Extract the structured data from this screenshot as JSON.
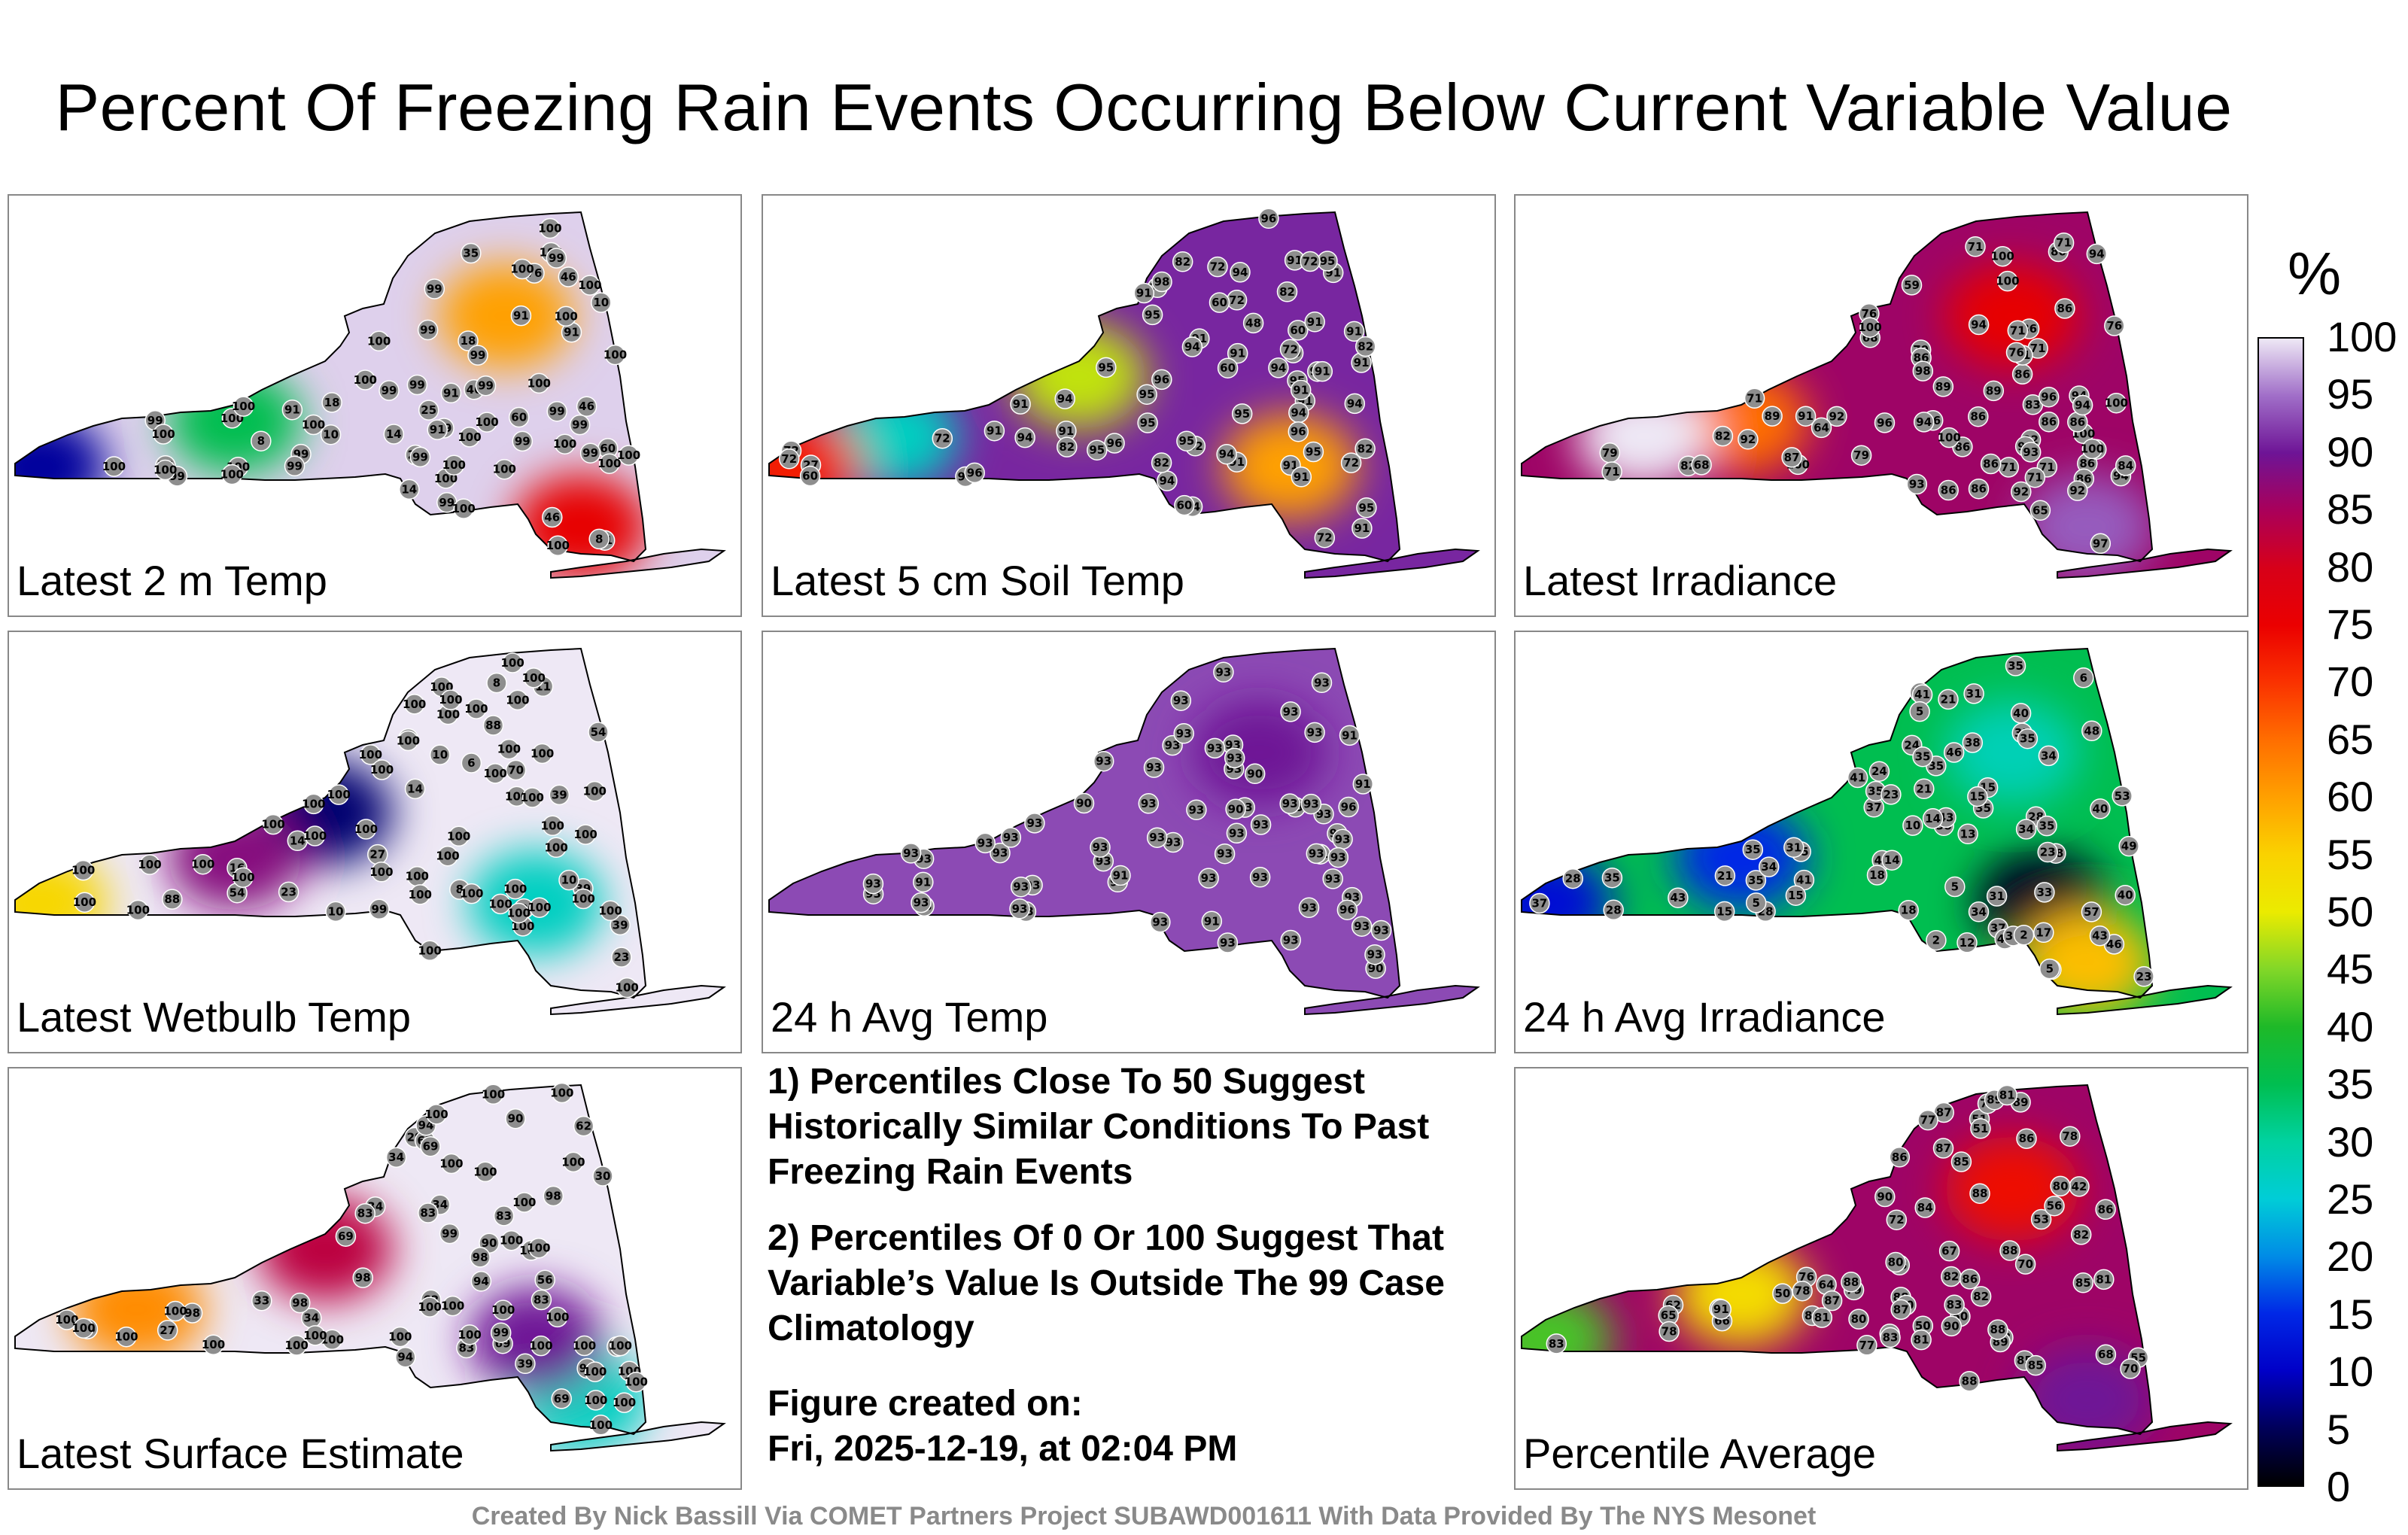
{
  "title": "Percent Of Freezing Rain Events Occurring Below Current Variable Value",
  "colors": {
    "low": "#000000",
    "blue": "#0016e0",
    "cyan": "#00c8d8",
    "green": "#1fb832",
    "yellow": "#f2f000",
    "orange": "#ff7a00",
    "red": "#e80000",
    "purple": "#6a1fa0",
    "lavender": "#e9e1f1"
  },
  "panels": [
    {
      "label": "Latest 2 m Temp",
      "background_pct": 99,
      "hotspots": [
        {
          "pct": 8
        },
        {
          "pct": 35
        },
        {
          "pct": 60
        },
        {
          "pct": 76
        }
      ],
      "stations": [
        "8",
        "18",
        "22",
        "14",
        "35",
        "46",
        "46",
        "46",
        "25",
        "60",
        "60",
        "11",
        "8",
        "18",
        "10",
        "14",
        "91",
        "76",
        "76",
        "46",
        "10",
        "99",
        "99",
        "99",
        "99",
        "100",
        "100",
        "99",
        "91",
        "91",
        "100",
        "91",
        "99",
        "99",
        "99",
        "99",
        "100",
        "99",
        "100",
        "100",
        "100",
        "99",
        "100",
        "100",
        "100",
        "99",
        "100",
        "100",
        "100",
        "100",
        "100",
        "100",
        "100",
        "99",
        "99",
        "99",
        "99",
        "99",
        "91",
        "99",
        "100",
        "100",
        "100",
        "100",
        "100",
        "100",
        "100",
        "100",
        "100",
        "100"
      ]
    },
    {
      "label": "Latest 5 cm Soil Temp",
      "background_pct": 91,
      "hotspots": [
        {
          "pct": 27
        },
        {
          "pct": 48
        },
        {
          "pct": 60
        },
        {
          "pct": 72
        }
      ],
      "stations": [
        "27",
        "95",
        "94",
        "91",
        "91",
        "96",
        "94",
        "91",
        "72",
        "95",
        "95",
        "91",
        "96",
        "94",
        "95",
        "72",
        "91",
        "72",
        "91",
        "91",
        "94",
        "95",
        "91",
        "95",
        "94",
        "91",
        "72",
        "82",
        "91",
        "94",
        "82",
        "91",
        "94",
        "91",
        "48",
        "72",
        "60",
        "95",
        "82",
        "91",
        "60",
        "82",
        "95",
        "82",
        "94",
        "91",
        "96",
        "72",
        "94",
        "72",
        "72",
        "91",
        "60",
        "82",
        "95",
        "96",
        "91",
        "60",
        "95",
        "60",
        "91",
        "95",
        "60",
        "82",
        "72",
        "72",
        "94",
        "98",
        "96",
        "91",
        "94",
        "96"
      ]
    },
    {
      "label": "Latest Irradiance",
      "background_pct": 86,
      "hotspots": [
        {
          "pct": 65
        },
        {
          "pct": 76
        },
        {
          "pct": 94
        },
        {
          "pct": 100
        }
      ],
      "stations": [
        "94",
        "83",
        "89",
        "86",
        "93",
        "86",
        "100",
        "94",
        "86",
        "71",
        "86",
        "91",
        "86",
        "86",
        "76",
        "79",
        "86",
        "89",
        "86",
        "71",
        "71",
        "71",
        "76",
        "86",
        "71",
        "89",
        "79",
        "71",
        "79",
        "71",
        "86",
        "92",
        "82",
        "71",
        "86",
        "68",
        "94",
        "100",
        "96",
        "86",
        "92",
        "86",
        "65",
        "68",
        "86",
        "92",
        "100",
        "98",
        "71",
        "92",
        "94",
        "96",
        "71",
        "82",
        "93",
        "86",
        "64",
        "76",
        "100",
        "96",
        "59",
        "100",
        "92",
        "100",
        "97",
        "94",
        "100",
        "98",
        "84",
        "87",
        "94",
        "100"
      ]
    },
    {
      "label": "Latest Wetbulb Temp",
      "background_pct": 100,
      "hotspots": [
        {
          "pct": 6
        },
        {
          "pct": 27
        },
        {
          "pct": 54
        },
        {
          "pct": 88
        }
      ],
      "stations": [
        "6",
        "14",
        "23",
        "8",
        "39",
        "54",
        "39",
        "39",
        "27",
        "16",
        "54",
        "88",
        "14",
        "11",
        "8",
        "10",
        "10",
        "23",
        "10",
        "70",
        "88",
        "54",
        "100",
        "100",
        "100",
        "100",
        "100",
        "100",
        "100",
        "100",
        "100",
        "100",
        "100",
        "99",
        "100",
        "100",
        "100",
        "100",
        "100",
        "100",
        "100",
        "100",
        "100",
        "100",
        "100",
        "100",
        "100",
        "100",
        "100",
        "100",
        "100",
        "100",
        "100",
        "100",
        "100",
        "100",
        "100",
        "100",
        "100",
        "100",
        "100",
        "100",
        "100",
        "100",
        "100",
        "100",
        "100",
        "100",
        "100",
        "100"
      ]
    },
    {
      "label": "24 h Avg Temp",
      "background_pct": 93,
      "hotspots": [
        {
          "pct": 90
        }
      ],
      "stations": [
        "91",
        "93",
        "91",
        "93",
        "90",
        "91",
        "93",
        "93",
        "93",
        "93",
        "93",
        "90",
        "93",
        "93",
        "90",
        "93",
        "93",
        "93",
        "93",
        "93",
        "93",
        "93",
        "93",
        "93",
        "93",
        "93",
        "93",
        "93",
        "93",
        "93",
        "93",
        "93",
        "93",
        "90",
        "93",
        "93",
        "93",
        "93",
        "91",
        "93",
        "93",
        "91",
        "93",
        "93",
        "93",
        "93",
        "93",
        "93",
        "93",
        "93",
        "90",
        "93",
        "93",
        "91",
        "93",
        "93",
        "93",
        "93",
        "93",
        "93",
        "93",
        "93",
        "96",
        "96",
        "93",
        "93",
        "93",
        "93",
        "93"
      ]
    },
    {
      "label": "24 h Avg Irradiance",
      "background_pct": 35,
      "hotspots": [
        {
          "pct": 2
        },
        {
          "pct": 12
        },
        {
          "pct": 15
        },
        {
          "pct": 28
        },
        {
          "pct": 57
        }
      ],
      "stations": [
        "40",
        "15",
        "35",
        "37",
        "28",
        "37",
        "31",
        "35",
        "31",
        "46",
        "35",
        "40",
        "18",
        "31",
        "38",
        "35",
        "41",
        "28",
        "35",
        "23",
        "35",
        "28",
        "43",
        "43",
        "40",
        "37",
        "48",
        "40",
        "35",
        "38",
        "41",
        "34",
        "33",
        "31",
        "35",
        "21",
        "35",
        "28",
        "24",
        "41",
        "31",
        "35",
        "35",
        "46",
        "35",
        "34",
        "34",
        "57",
        "38",
        "43",
        "53",
        "48",
        "49",
        "24",
        "34",
        "2",
        "5",
        "5",
        "6",
        "5",
        "13",
        "12",
        "2",
        "5",
        "14",
        "21",
        "24",
        "21",
        "15",
        "15",
        "10",
        "14",
        "17",
        "15",
        "18",
        "23",
        "23"
      ]
    },
    {
      "label": "Latest Surface Estimate",
      "background_pct": 100,
      "hotspots": [
        {
          "pct": 27
        },
        {
          "pct": 62
        },
        {
          "pct": 83
        },
        {
          "pct": 90
        }
      ],
      "stations": [
        "27",
        "34",
        "29",
        "34",
        "39",
        "56",
        "69",
        "62",
        "43",
        "62",
        "69",
        "34",
        "33",
        "30",
        "34",
        "90",
        "94",
        "62",
        "90",
        "69",
        "83",
        "69",
        "100",
        "98",
        "99",
        "100",
        "100",
        "99",
        "98",
        "100",
        "98",
        "83",
        "90",
        "83",
        "83",
        "100",
        "100",
        "98",
        "94",
        "100",
        "100",
        "100",
        "100",
        "98",
        "100",
        "100",
        "100",
        "100",
        "100",
        "100",
        "100",
        "100",
        "100",
        "100",
        "100",
        "100",
        "98",
        "83",
        "94",
        "100",
        "100",
        "100",
        "100",
        "100",
        "100",
        "100",
        "100",
        "100",
        "100",
        "100"
      ]
    },
    {
      "label": "Percentile Average",
      "background_pct": 86,
      "hotspots": [
        {
          "pct": 42
        },
        {
          "pct": 53
        },
        {
          "pct": 74
        },
        {
          "pct": 90
        }
      ],
      "stations": [
        "42",
        "50",
        "53",
        "50",
        "51",
        "62",
        "53",
        "51",
        "56",
        "70",
        "66",
        "65",
        "67",
        "55",
        "50",
        "68",
        "80",
        "83",
        "77",
        "72",
        "64",
        "80",
        "78",
        "82",
        "87",
        "86",
        "88",
        "84",
        "81",
        "83",
        "88",
        "87",
        "89",
        "82",
        "77",
        "80",
        "85",
        "85",
        "87",
        "76",
        "75",
        "70",
        "81",
        "86",
        "83",
        "80",
        "78",
        "79",
        "82",
        "86",
        "85",
        "87",
        "89",
        "88",
        "85",
        "80",
        "83",
        "87",
        "90",
        "88",
        "88",
        "81",
        "87",
        "89",
        "90",
        "91",
        "86",
        "88",
        "81",
        "78"
      ]
    }
  ],
  "notes": {
    "line1": "1) Percentiles Close To 50 Suggest Historically Similar Conditions To Past Freezing Rain Events",
    "line2": "2) Percentiles Of 0 Or 100 Suggest That Variable’s Value Is Outside The 99 Case Climatology",
    "created_label": "Figure created on:",
    "created_date": "Fri, 2025-12-19, at 02:04 PM"
  },
  "colorbar": {
    "unit": "%",
    "ticks": [
      "100",
      "95",
      "90",
      "85",
      "80",
      "75",
      "70",
      "65",
      "60",
      "55",
      "50",
      "45",
      "40",
      "35",
      "30",
      "25",
      "20",
      "15",
      "10",
      "5",
      "0"
    ]
  },
  "footer": "Created By Nick Bassill Via COMET Partners Project SUBAWD001611 With Data Provided By The NYS Mesonet"
}
